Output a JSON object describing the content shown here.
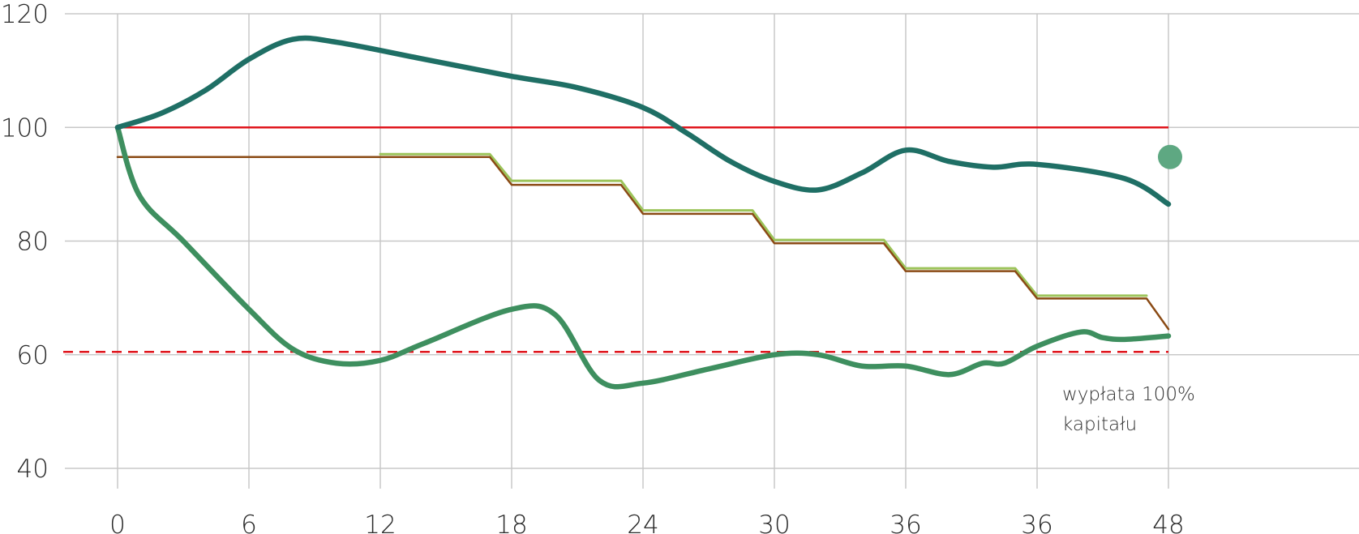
{
  "chart_data": {
    "type": "line",
    "title": "",
    "xlabel": "",
    "ylabel": "",
    "ylim": [
      40,
      120
    ],
    "y_ticks": [
      "40",
      "60",
      "80",
      "100",
      "120"
    ],
    "x_tick_labels": [
      "0",
      "6",
      "12",
      "18",
      "24",
      "30",
      "36",
      "36",
      "48"
    ],
    "grid": true,
    "colors": {
      "upper_path": "#1f6f65",
      "lower_path": "#3e8f5f",
      "coupon_lime": "#9cc45a",
      "coupon_brown": "#8a4a14",
      "barrier_100": "#e0161d",
      "barrier_60": "#e0161d",
      "end_dot": "#5ea882",
      "grid": "#c8c8c8"
    },
    "series": [
      {
        "key": "upper",
        "x": [
          0,
          2,
          4,
          6,
          8,
          10,
          14,
          18,
          21,
          24,
          26,
          28,
          30,
          32,
          34,
          36,
          38,
          40,
          42,
          46,
          48
        ],
        "y": [
          100,
          102.5,
          106.5,
          112,
          115.5,
          115,
          112,
          109,
          107,
          103.5,
          99,
          94,
          90.5,
          89,
          92,
          96,
          94,
          93,
          93.5,
          91,
          86.5
        ]
      },
      {
        "key": "lower",
        "x": [
          0,
          1,
          3,
          6,
          8,
          10,
          12,
          14,
          18,
          20,
          22,
          24,
          27,
          30,
          32,
          34,
          36,
          38,
          39.5,
          40.5,
          42,
          44,
          45,
          46,
          48
        ],
        "y": [
          100,
          88,
          80,
          68,
          61,
          58.5,
          59,
          62,
          68,
          67,
          55.5,
          55,
          57.5,
          60,
          60,
          58,
          58,
          56.5,
          58.5,
          58.5,
          61.5,
          64,
          63,
          62.7,
          63.3
        ]
      },
      {
        "key": "coupon-lime",
        "x": [
          12,
          17,
          18,
          23,
          24,
          29,
          30,
          35,
          36,
          41,
          42,
          47
        ],
        "y": [
          95.3,
          95.3,
          90.6,
          90.6,
          85.4,
          85.4,
          80.2,
          80.2,
          75.2,
          75.2,
          70.4,
          70.4
        ]
      },
      {
        "key": "coupon-brown",
        "x": [
          0,
          17,
          18,
          23,
          24,
          29,
          30,
          35,
          36,
          41,
          42,
          47,
          48
        ],
        "y": [
          94.8,
          94.8,
          89.9,
          89.9,
          84.8,
          84.8,
          79.6,
          79.6,
          74.7,
          74.7,
          69.9,
          69.9,
          64.5
        ]
      }
    ],
    "reference_lines": [
      {
        "key": "barrier-100",
        "y": 100,
        "style": "solid"
      },
      {
        "key": "barrier-60",
        "y": 60.5,
        "style": "dashed"
      }
    ],
    "markers": [
      {
        "key": "end-dot",
        "x": 48,
        "y": 94.8
      }
    ],
    "annotations": [
      "wypłata 100%",
      "kapitału"
    ]
  }
}
